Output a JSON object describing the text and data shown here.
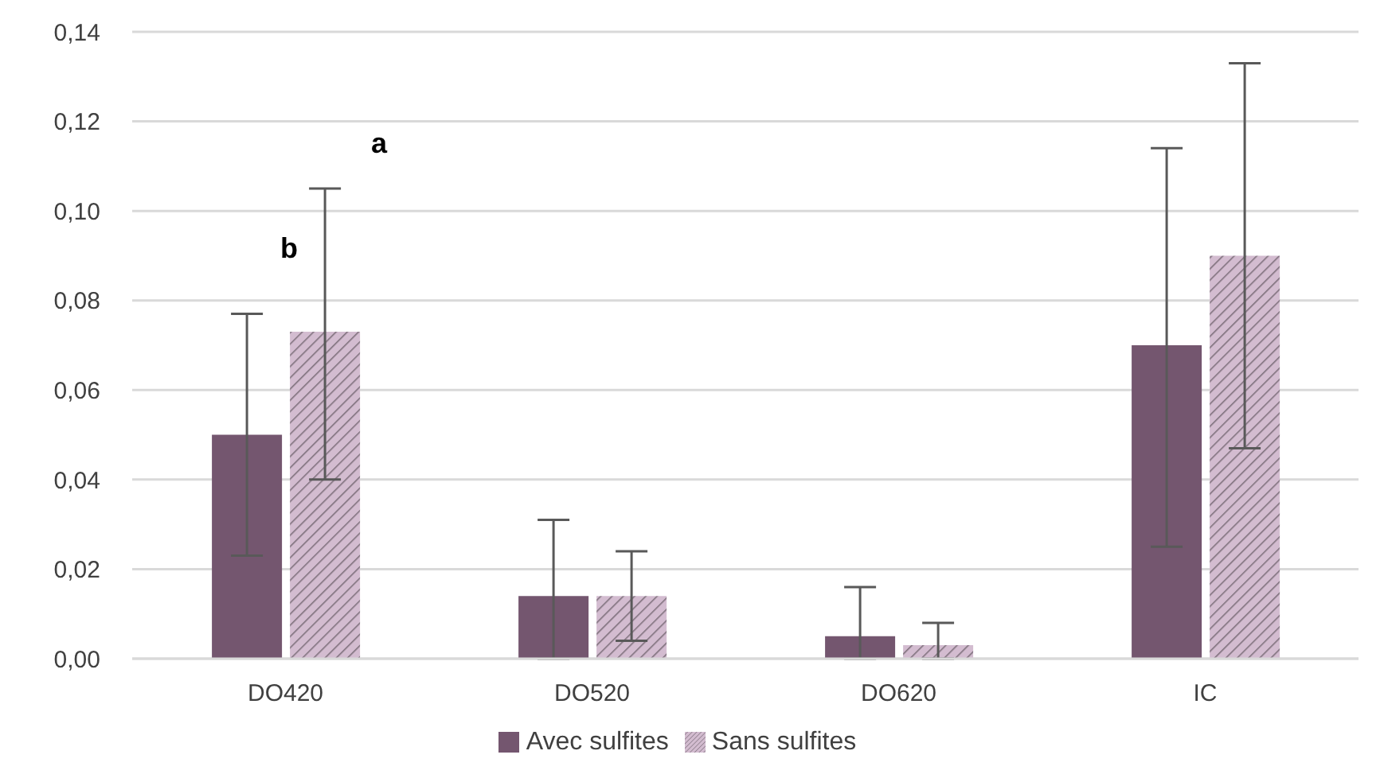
{
  "chart_data": {
    "type": "bar",
    "categories": [
      "DO420",
      "DO520",
      "DO620",
      "IC"
    ],
    "series": [
      {
        "name": "Avec sulfites",
        "color": "#74566f",
        "values": [
          0.05,
          0.014,
          0.005,
          0.07
        ],
        "errors": [
          [
            0.023,
            0.077
          ],
          [
            0,
            0.031
          ],
          [
            0,
            0.016
          ],
          [
            0.025,
            0.114
          ]
        ]
      },
      {
        "name": "Sans sulfites",
        "color": "#d3bcd0",
        "values": [
          0.073,
          0.014,
          0.003,
          0.09
        ],
        "errors": [
          [
            0.04,
            0.105
          ],
          [
            0.004,
            0.024
          ],
          [
            0,
            0.008
          ],
          [
            0.047,
            0.133
          ]
        ]
      }
    ],
    "ylim": [
      0,
      0.14
    ],
    "yticks": [
      {
        "value": 0,
        "label": "0,00"
      },
      {
        "value": 0.02,
        "label": "0,02"
      },
      {
        "value": 0.04,
        "label": "0,04"
      },
      {
        "value": 0.06,
        "label": "0,06"
      },
      {
        "value": 0.08,
        "label": "0,08"
      },
      {
        "value": 0.1,
        "label": "0,10"
      },
      {
        "value": 0.12,
        "label": "0,12"
      },
      {
        "value": 0.14,
        "label": "0,14"
      }
    ],
    "grid": "y",
    "legend": "bottom",
    "annotations": [
      "b",
      "a"
    ]
  }
}
